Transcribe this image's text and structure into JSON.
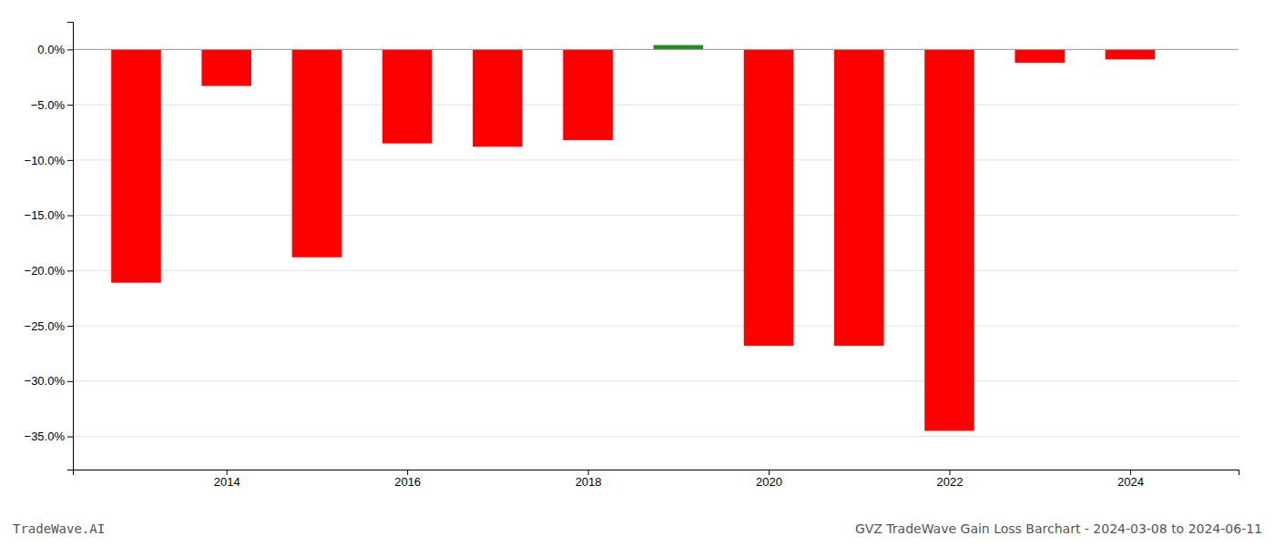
{
  "chart_data": {
    "type": "bar",
    "title": "GVZ TradeWave Gain Loss Barchart - 2024-03-08 to 2024-06-11",
    "annotations": [
      "TradeWave.AI"
    ],
    "x": [
      2013,
      2014,
      2015,
      2016,
      2017,
      2018,
      2019,
      2020,
      2021,
      2022,
      2023,
      2024
    ],
    "values": [
      -0.211,
      -0.033,
      -0.188,
      -0.085,
      -0.088,
      -0.082,
      0.004,
      -0.268,
      -0.268,
      -0.345,
      -0.012,
      -0.009
    ],
    "colors": [
      "#ff0000",
      "#ff0000",
      "#ff0000",
      "#ff0000",
      "#ff0000",
      "#ff0000",
      "#228B22",
      "#ff0000",
      "#ff0000",
      "#ff0000",
      "#ff0000",
      "#ff0000"
    ],
    "xlim": [
      2012.3,
      2025.2
    ],
    "xticks": [
      2014,
      2016,
      2018,
      2020,
      2022,
      2024
    ],
    "ylim": [
      -0.38,
      0.025
    ],
    "yticks": [
      {
        "value": 0.0,
        "label": "0.0%"
      },
      {
        "value": -0.05,
        "label": "−5.0%"
      },
      {
        "value": -0.1,
        "label": "−10.0%"
      },
      {
        "value": -0.15,
        "label": "−15.0%"
      },
      {
        "value": -0.2,
        "label": "−20.0%"
      },
      {
        "value": -0.25,
        "label": "−25.0%"
      },
      {
        "value": -0.3,
        "label": "−30.0%"
      },
      {
        "value": -0.35,
        "label": "−35.0%"
      }
    ],
    "grid": true
  }
}
